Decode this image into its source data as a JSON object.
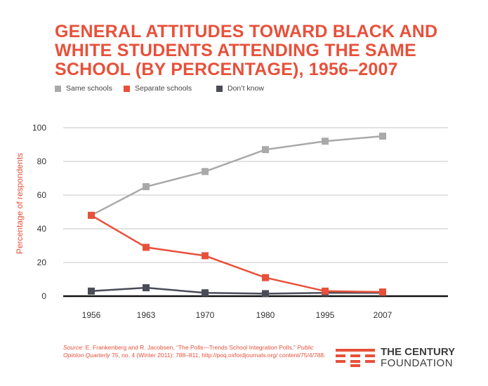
{
  "title_lines": [
    "GENERAL ATTITUDES TOWARD BLACK AND",
    "WHITE STUDENTS ATTENDING THE SAME",
    "SCHOOL (BY PERCENTAGE), 1956–2007"
  ],
  "chart_data": {
    "type": "line",
    "title": "GENERAL ATTITUDES TOWARD BLACK AND WHITE STUDENTS ATTENDING THE SAME SCHOOL (BY PERCENTAGE), 1956–2007",
    "xlabel": "",
    "ylabel": "Percentage of respondents",
    "categories": [
      "1956",
      "1963",
      "1970",
      "1980",
      "1995",
      "2007"
    ],
    "ylim": [
      0,
      100
    ],
    "yticks": [
      0,
      20,
      40,
      60,
      80,
      100
    ],
    "grid": true,
    "legend_position": "top-left",
    "series": [
      {
        "name": "Same schools",
        "color": "#a9a9a9",
        "values": [
          48,
          65,
          74,
          87,
          92,
          95
        ]
      },
      {
        "name": "Separate schools",
        "color": "#e8503a",
        "values": [
          48,
          29,
          24,
          11,
          3,
          2.5
        ]
      },
      {
        "name": "Don’t know",
        "color": "#4a4c57",
        "values": [
          3,
          5,
          2,
          1.5,
          2,
          2
        ]
      }
    ]
  },
  "source": {
    "label": "Source",
    "text1": ": E. Frankenberg and R. Jacobsen, “The Polls—Trends School Integration Polls,”",
    "journal": "Public Opinion Quarterly",
    "text2": " 75, no. 4 (Winter 2011): 788–811, http://poq.oxfordjournals.org/",
    "text3": "content/75/4/788."
  },
  "logo": {
    "line1": "THE CENTURY",
    "line2": "FOUNDATION",
    "accent_color": "#e8503a",
    "mark_icon": "century-foundation-mark-icon"
  }
}
